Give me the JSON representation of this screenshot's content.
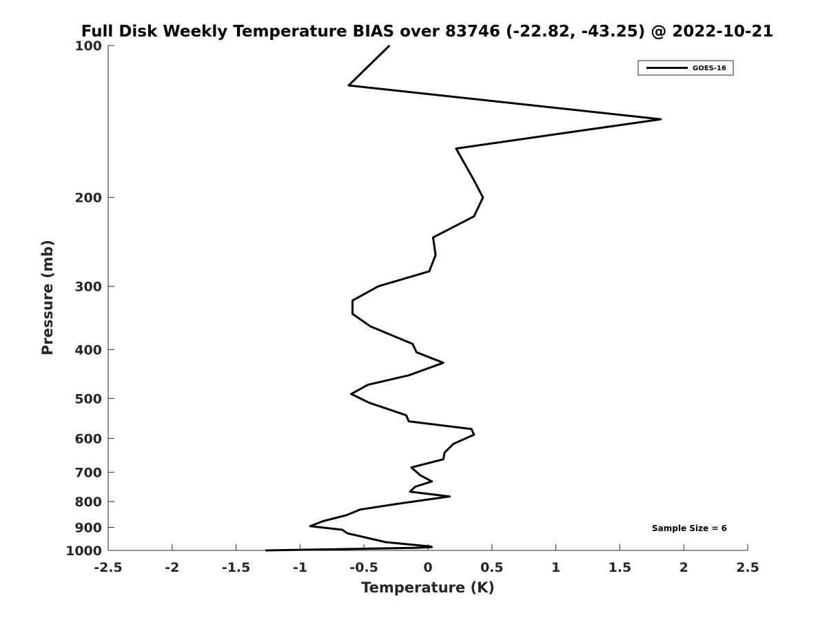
{
  "chart_data": {
    "type": "line",
    "title": "Full Disk Weekly Temperature BIAS over 83746 (-22.82, -43.25) @ 2022-10-21",
    "xlabel": "Temperature (K)",
    "ylabel": "Pressure (mb)",
    "xlim": [
      -2.5,
      2.5
    ],
    "ylim": [
      100,
      1000
    ],
    "y_scale": "log",
    "y_reversed": true,
    "x_ticks": [
      "-2.5",
      "-2",
      "-1.5",
      "-1",
      "-0.5",
      "0",
      "0.5",
      "1",
      "1.5",
      "2",
      "2.5"
    ],
    "y_ticks": [
      "100",
      "200",
      "300",
      "400",
      "500",
      "600",
      "700",
      "800",
      "900",
      "1000"
    ],
    "grid": false,
    "legend_position": "top-right",
    "annotation": "Sample Size = 6",
    "series": [
      {
        "name": "GOES-16",
        "color": "#000000",
        "points": [
          [
            -0.3,
            100
          ],
          [
            -0.62,
            120
          ],
          [
            1.82,
            140
          ],
          [
            0.22,
            160
          ],
          [
            0.36,
            185
          ],
          [
            0.43,
            200
          ],
          [
            0.36,
            218
          ],
          [
            0.04,
            240
          ],
          [
            0.06,
            260
          ],
          [
            0.01,
            280
          ],
          [
            -0.39,
            300
          ],
          [
            -0.59,
            320
          ],
          [
            -0.59,
            340
          ],
          [
            -0.45,
            360
          ],
          [
            -0.12,
            390
          ],
          [
            -0.09,
            405
          ],
          [
            0.12,
            425
          ],
          [
            -0.15,
            450
          ],
          [
            -0.47,
            470
          ],
          [
            -0.6,
            490
          ],
          [
            -0.46,
            510
          ],
          [
            -0.17,
            540
          ],
          [
            -0.15,
            555
          ],
          [
            0.34,
            575
          ],
          [
            0.36,
            590
          ],
          [
            0.2,
            615
          ],
          [
            0.13,
            640
          ],
          [
            0.12,
            660
          ],
          [
            -0.13,
            685
          ],
          [
            -0.06,
            710
          ],
          [
            0.03,
            730
          ],
          [
            -0.1,
            748
          ],
          [
            -0.14,
            765
          ],
          [
            0.17,
            782
          ],
          [
            -0.23,
            808
          ],
          [
            -0.53,
            830
          ],
          [
            -0.64,
            852
          ],
          [
            -0.82,
            875
          ],
          [
            -0.92,
            895
          ],
          [
            -0.67,
            910
          ],
          [
            -0.63,
            925
          ],
          [
            -0.47,
            945
          ],
          [
            -0.33,
            963
          ],
          [
            0.02,
            982
          ],
          [
            0.03,
            985
          ],
          [
            -0.1,
            988
          ],
          [
            -1.27,
            1000
          ]
        ]
      }
    ]
  }
}
